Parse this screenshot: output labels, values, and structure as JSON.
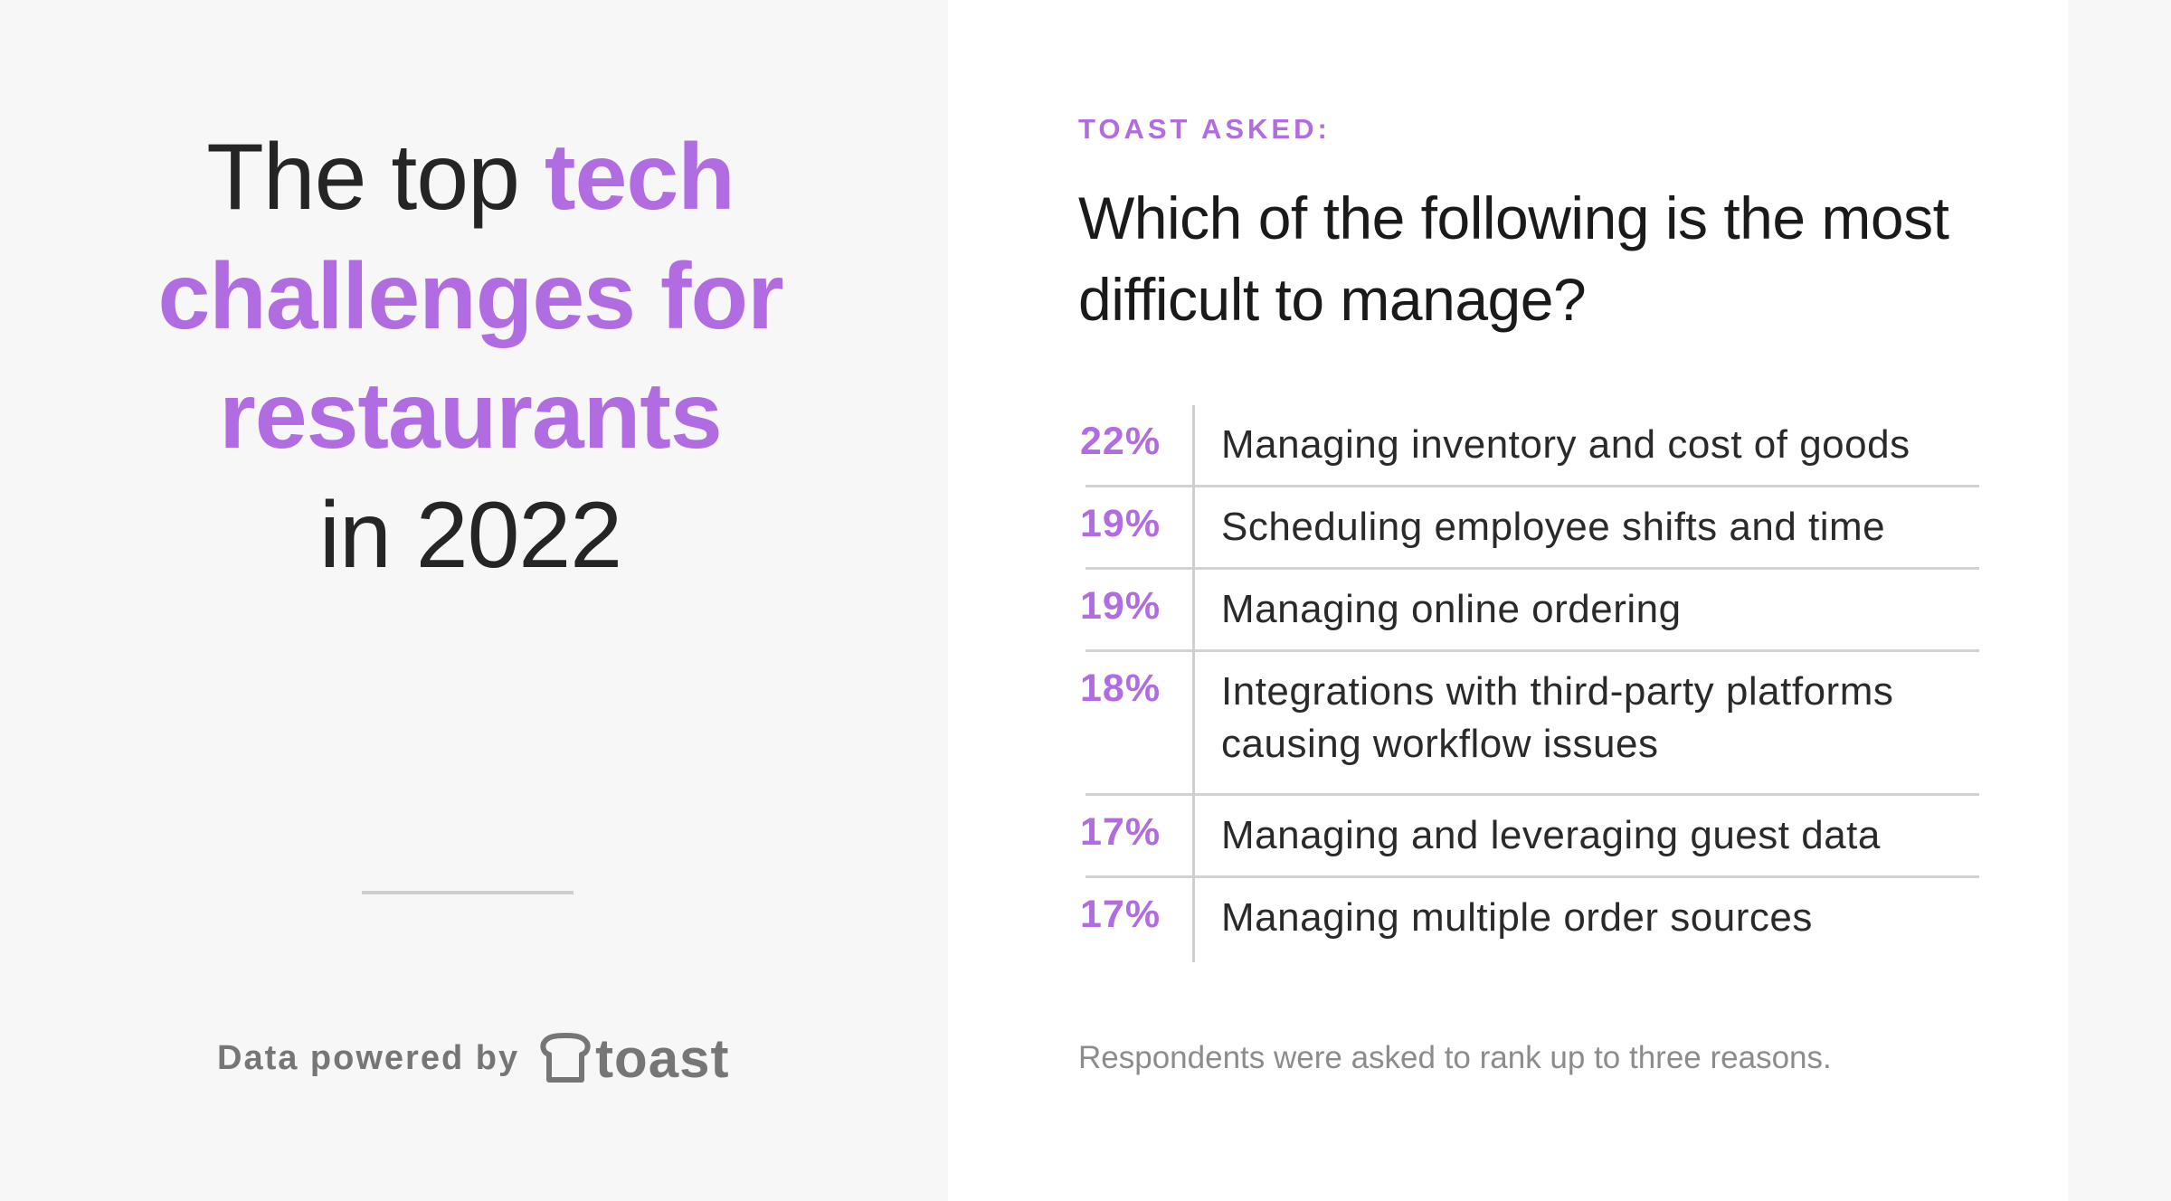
{
  "headline": {
    "line1_plain": "The top",
    "line1_accent": "tech",
    "line2_accent": "challenges for",
    "line3_accent": "restaurants",
    "line4_plain": "in 2022"
  },
  "footer": {
    "powered_by": "Data powered by",
    "brand": "toast"
  },
  "card": {
    "kicker": "TOAST ASKED:",
    "question": "Which of the following is the most difficult to manage?",
    "footnote": "Respondents were asked to rank up to three reasons."
  },
  "colors": {
    "accent": "#b06ce0",
    "text": "#252525",
    "muted": "#767676",
    "background": "#f7f7f7",
    "card": "#ffffff"
  },
  "chart_data": {
    "type": "table",
    "categories": [
      "Managing inventory and cost of goods",
      "Scheduling employee shifts and time",
      "Managing online ordering",
      "Integrations with third-party platforms causing workflow issues",
      "Managing and leveraging guest data",
      "Managing multiple order sources"
    ],
    "values": [
      22,
      19,
      19,
      18,
      17,
      17
    ],
    "value_labels": [
      "22%",
      "19%",
      "19%",
      "18%",
      "17%",
      "17%"
    ],
    "label_lines": [
      [
        "Managing inventory and cost of goods"
      ],
      [
        "Scheduling employee shifts and time"
      ],
      [
        "Managing online ordering"
      ],
      [
        "Integrations with third-party platforms",
        "causing workflow issues"
      ],
      [
        "Managing and leveraging guest data"
      ],
      [
        "Managing multiple order sources"
      ]
    ],
    "unit": "%"
  }
}
